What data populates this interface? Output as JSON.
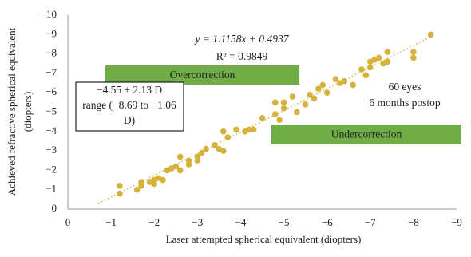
{
  "chart_data": {
    "type": "scatter",
    "x_label": "Laser attempted spherical equivalent (diopters)",
    "y_label": [
      "Achieved refractive spherical equivalent",
      "(diopters)"
    ],
    "equation": [
      "y = 1.1158x + 0.4937",
      "R² = 0.9849"
    ],
    "regions": [
      "Overcorrection",
      "Undercorrection"
    ],
    "box_text": [
      "−4.55 ± 2.13 D",
      "range (−8.69 to −1.06",
      "D)"
    ],
    "note": [
      "60 eyes",
      "6 months postop"
    ],
    "color": "#d6b23c",
    "region_color": "#70ad47",
    "x": [
      -1.2,
      -1.2,
      -1.6,
      -1.7,
      -1.7,
      -1.9,
      -2.0,
      -2.0,
      -2.1,
      -2.2,
      -2.3,
      -2.4,
      -2.5,
      -2.6,
      -2.6,
      -2.8,
      -2.8,
      -3.0,
      -3.0,
      -3.1,
      -3.2,
      -3.4,
      -3.5,
      -3.6,
      -3.6,
      -3.7,
      -3.9,
      -4.1,
      -4.2,
      -4.3,
      -4.5,
      -4.8,
      -4.8,
      -4.9,
      -5.0,
      -5.0,
      -5.2,
      -5.3,
      -5.5,
      -5.6,
      -5.7,
      -5.8,
      -5.9,
      -6.0,
      -6.2,
      -6.3,
      -6.4,
      -6.6,
      -6.8,
      -6.9,
      -7.0,
      -7.0,
      -7.1,
      -7.2,
      -7.3,
      -7.4,
      -7.4,
      -8.0,
      -8.0,
      -8.4
    ],
    "values": [
      -1.2,
      -0.8,
      -1.0,
      -1.4,
      -1.2,
      -1.4,
      -1.5,
      -1.3,
      -1.6,
      -1.5,
      -2.0,
      -2.1,
      -2.2,
      -2.7,
      -2.0,
      -2.5,
      -2.3,
      -2.7,
      -2.5,
      -2.9,
      -3.1,
      -3.3,
      -3.1,
      -3.0,
      -4.0,
      -3.7,
      -4.1,
      -4.0,
      -4.1,
      -4.1,
      -4.7,
      -5.5,
      -4.9,
      -4.6,
      -5.2,
      -5.5,
      -5.8,
      -5.0,
      -5.4,
      -5.9,
      -5.7,
      -6.2,
      -6.4,
      -6.0,
      -6.7,
      -6.5,
      -6.6,
      -6.4,
      -7.2,
      -6.9,
      -7.6,
      -7.3,
      -7.7,
      -7.8,
      -7.5,
      -8.1,
      -7.6,
      -8.1,
      -7.8,
      -9.0
    ],
    "trendline": {
      "x": [
        -0.7,
        -8.4
      ],
      "y": [
        -0.29,
        -8.88
      ]
    },
    "xlim": [
      0,
      -9
    ],
    "ylim": [
      0,
      -10
    ],
    "xticks": [
      {
        "value": 0,
        "label": "0"
      },
      {
        "value": -1,
        "label": "−1"
      },
      {
        "value": -2,
        "label": "−2"
      },
      {
        "value": -3,
        "label": "−3"
      },
      {
        "value": -4,
        "label": "−4"
      },
      {
        "value": -5,
        "label": "−5"
      },
      {
        "value": -6,
        "label": "−6"
      },
      {
        "value": -7,
        "label": "−7"
      },
      {
        "value": -8,
        "label": "−8"
      },
      {
        "value": -9,
        "label": "−9"
      }
    ],
    "yticks": [
      {
        "value": 0,
        "label": "0"
      },
      {
        "value": -1,
        "label": "−1"
      },
      {
        "value": -2,
        "label": "−2"
      },
      {
        "value": -3,
        "label": "−3"
      },
      {
        "value": -4,
        "label": "−4"
      },
      {
        "value": -5,
        "label": "−5"
      },
      {
        "value": -6,
        "label": "−6"
      },
      {
        "value": -7,
        "label": "−7"
      },
      {
        "value": -8,
        "label": "−8"
      },
      {
        "value": -9,
        "label": "−9"
      },
      {
        "value": -10,
        "label": "−10"
      }
    ]
  }
}
